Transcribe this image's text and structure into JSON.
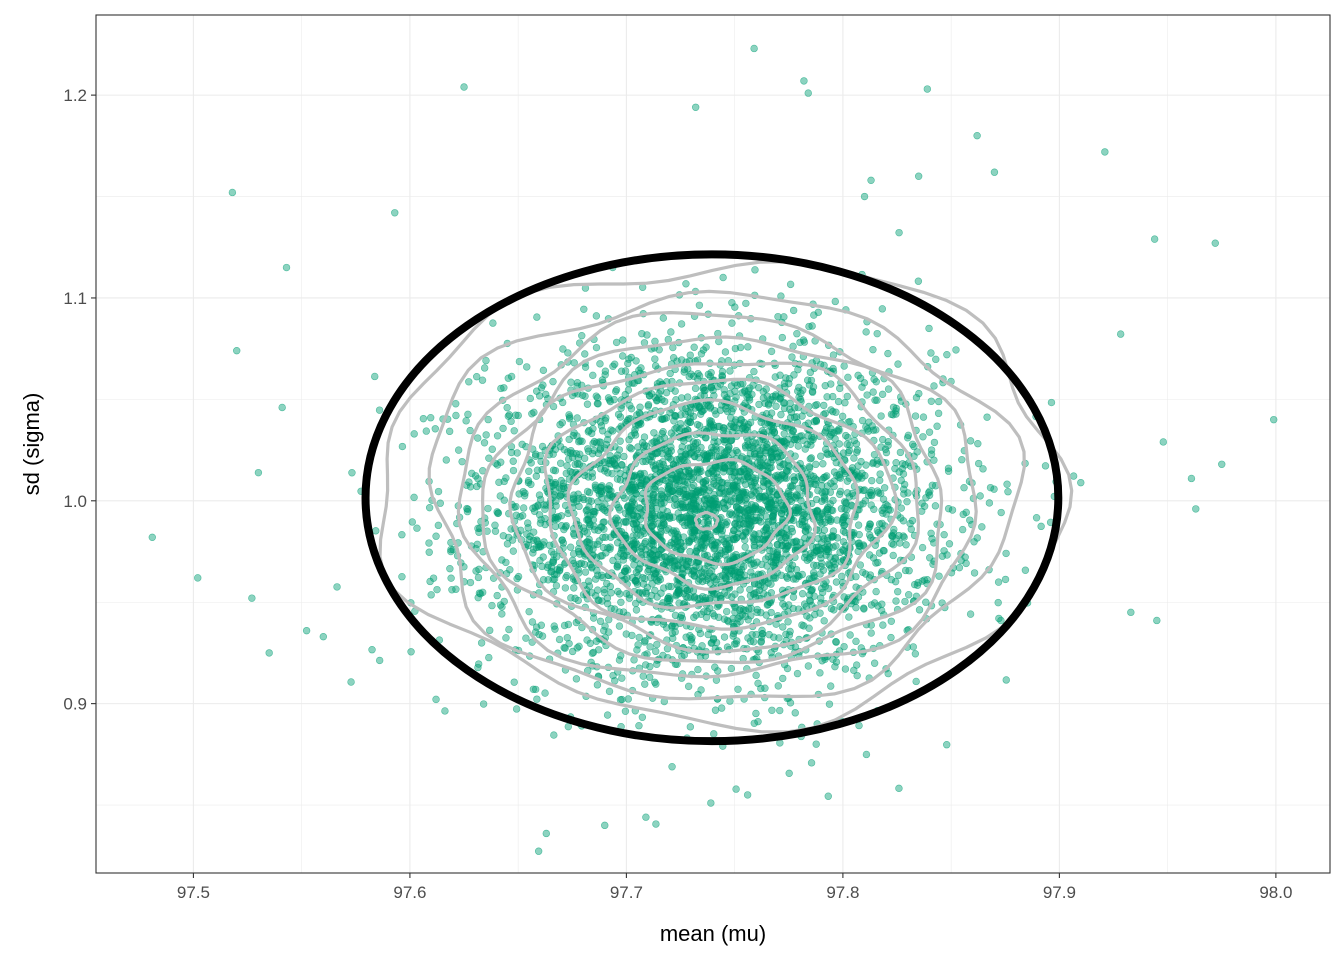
{
  "chart_data": {
    "type": "scatter",
    "title": "",
    "xlabel": "mean (mu)",
    "ylabel": "sd (sigma)",
    "xlim": [
      97.455,
      98.025
    ],
    "ylim": [
      0.8165,
      1.2395
    ],
    "x_ticks": [
      97.5,
      97.6,
      97.7,
      97.8,
      97.9,
      98.0
    ],
    "x_tick_labels": [
      "97.5",
      "97.6",
      "97.7",
      "97.8",
      "97.9",
      "98.0"
    ],
    "y_ticks": [
      0.9,
      1.0,
      1.1,
      1.2
    ],
    "y_tick_labels": [
      "0.9",
      "1.0",
      "1.1",
      "1.2"
    ],
    "grid": true,
    "point_color": "#009E73",
    "point_alpha": 0.45,
    "contour_color": "#BEBEBE",
    "ellipse_color": "#000000",
    "ellipse": {
      "cx": 97.7395,
      "cy": 1.0015,
      "rx": 0.16,
      "ry": 0.12
    },
    "density_center": {
      "x": 97.74,
      "y": 0.995
    },
    "density_spread": {
      "sd_x": 0.052,
      "sd_y": 0.04
    },
    "n_points": 4000,
    "outlier_points": [
      [
        97.481,
        0.982
      ],
      [
        97.502,
        0.962
      ],
      [
        97.518,
        1.152
      ],
      [
        97.52,
        1.074
      ],
      [
        97.625,
        1.204
      ],
      [
        97.759,
        1.223
      ],
      [
        97.839,
        1.203
      ],
      [
        97.782,
        1.207
      ],
      [
        97.784,
        1.201
      ],
      [
        97.732,
        1.194
      ],
      [
        97.921,
        1.172
      ],
      [
        97.972,
        1.127
      ],
      [
        97.999,
        1.04
      ],
      [
        97.543,
        1.115
      ],
      [
        97.541,
        1.046
      ],
      [
        97.527,
        0.952
      ],
      [
        97.535,
        0.925
      ],
      [
        97.56,
        0.933
      ],
      [
        97.663,
        0.836
      ],
      [
        97.69,
        0.84
      ],
      [
        97.739,
        0.851
      ],
      [
        97.709,
        0.844
      ],
      [
        97.756,
        0.855
      ],
      [
        97.963,
        0.996
      ],
      [
        97.961,
        1.011
      ],
      [
        97.975,
        1.018
      ],
      [
        97.948,
        1.029
      ],
      [
        97.945,
        0.941
      ],
      [
        97.933,
        0.945
      ],
      [
        97.944,
        1.129
      ],
      [
        97.862,
        1.18
      ],
      [
        97.87,
        1.162
      ],
      [
        97.813,
        1.158
      ],
      [
        97.835,
        1.16
      ],
      [
        97.81,
        1.15
      ],
      [
        97.593,
        1.142
      ]
    ],
    "contours": [
      {
        "rx": 0.005,
        "ry": 0.004,
        "cx": 97.737,
        "cy": 0.99
      },
      {
        "rx": 0.033,
        "ry": 0.025,
        "cx": 97.741,
        "cy": 0.995
      },
      {
        "rx": 0.046,
        "ry": 0.038,
        "cx": 97.741,
        "cy": 0.996
      },
      {
        "rx": 0.066,
        "ry": 0.05,
        "cx": 97.741,
        "cy": 0.997
      },
      {
        "rx": 0.08,
        "ry": 0.061,
        "cx": 97.741,
        "cy": 0.998
      },
      {
        "rx": 0.094,
        "ry": 0.071,
        "cx": 97.741,
        "cy": 0.999
      },
      {
        "rx": 0.106,
        "ry": 0.08,
        "cx": 97.742,
        "cy": 1.0
      },
      {
        "rx": 0.119,
        "ry": 0.089,
        "cx": 97.742,
        "cy": 1.001
      },
      {
        "rx": 0.135,
        "ry": 0.1,
        "cx": 97.743,
        "cy": 1.002
      },
      {
        "rx": 0.158,
        "ry": 0.113,
        "cx": 97.745,
        "cy": 1.005
      }
    ]
  }
}
